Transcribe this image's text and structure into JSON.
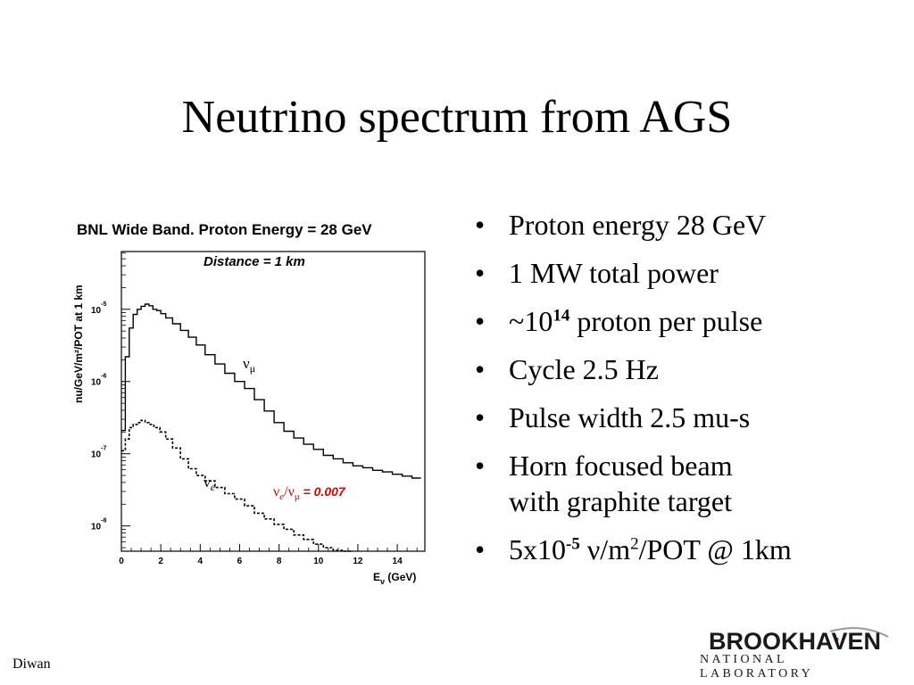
{
  "slide": {
    "title": "Neutrino spectrum from AGS",
    "author": "Diwan"
  },
  "bullets": [
    {
      "text": "Proton energy 28 GeV"
    },
    {
      "text": "1 MW total power"
    },
    {
      "pre": "~10",
      "sup": "14",
      "post": " proton per pulse"
    },
    {
      "text": "Cycle 2.5 Hz"
    },
    {
      "text": "Pulse width 2.5 mu-s"
    },
    {
      "text": "Horn focused beam",
      "text2": "with graphite target"
    },
    {
      "pre": "5x10",
      "sup": "-5",
      "post": " ν/m",
      "sup2": "2",
      "post2": "/POT @ 1km"
    }
  ],
  "logo": {
    "main": "BROOKHAVEN",
    "sub": "NATIONAL LABORATORY",
    "color": "#1a1a1a",
    "swoosh_color": "#9a9a9a",
    "dot_color": "#c8102e"
  },
  "chart_data": {
    "type": "line",
    "title": "BNL Wide Band. Proton Energy = 28 GeV",
    "subtitle": "Distance = 1 km",
    "xlabel": "E",
    "xlabel_sub": "ν",
    "xlabel_unit": " (GeV)",
    "ylabel": "nu/GeV/m²/POT at 1 km",
    "xlim": [
      0,
      15.4
    ],
    "ylim_log10": [
      -8.35,
      -4.2
    ],
    "log_y": true,
    "x_ticks": [
      0,
      2,
      4,
      6,
      8,
      10,
      12,
      14
    ],
    "y_ticks": [
      {
        "base": "10",
        "exp": "-5",
        "log": -5
      },
      {
        "base": "10",
        "exp": "-6",
        "log": -6
      },
      {
        "base": "10",
        "exp": "-7",
        "log": -7
      },
      {
        "base": "10",
        "exp": "-8",
        "log": -8
      }
    ],
    "ratio_label": "ν",
    "ratio_sub1": "e",
    "ratio_mid": "/ν",
    "ratio_sub2": "μ",
    "ratio_value": " = 0.007",
    "ratio_color": "#e00000",
    "series": [
      {
        "name": "ν",
        "name_sub": "μ",
        "style": "solid",
        "x": [
          0.1,
          0.3,
          0.5,
          0.7,
          0.9,
          1.1,
          1.3,
          1.5,
          1.7,
          1.9,
          2.1,
          2.4,
          2.8,
          3.2,
          3.6,
          4.0,
          4.5,
          5.0,
          5.5,
          6.0,
          6.5,
          7.0,
          7.5,
          8.0,
          8.5,
          9.0,
          9.5,
          10.0,
          10.5,
          11.0,
          11.5,
          12.0,
          12.5,
          13.0,
          13.5,
          14.0,
          14.5,
          15.0
        ],
        "y": [
          2.1e-07,
          2.2e-06,
          5.5e-06,
          8.5e-06,
          1e-05,
          1.1e-05,
          1.18e-05,
          1.12e-05,
          1e-05,
          9.6e-06,
          8.7e-06,
          7.6e-06,
          6.3e-06,
          5.1e-06,
          4.1e-06,
          3.2e-06,
          2.35e-06,
          1.75e-06,
          1.3e-06,
          1e-06,
          8e-07,
          5.6e-07,
          3.9e-07,
          2.7e-07,
          2.05e-07,
          1.65e-07,
          1.35e-07,
          1.15e-07,
          9.5e-08,
          8.5e-08,
          7.5e-08,
          6.8e-08,
          6.4e-08,
          5.9e-08,
          5.6e-08,
          5.2e-08,
          4.9e-08,
          4.6e-08
        ]
      },
      {
        "name": "ν",
        "name_sub": "e",
        "style": "dashed",
        "x": [
          0.1,
          0.3,
          0.5,
          0.7,
          0.9,
          1.1,
          1.3,
          1.5,
          1.8,
          2.1,
          2.4,
          2.8,
          3.2,
          3.6,
          4.0,
          4.5,
          5.0,
          5.5,
          6.0,
          6.5,
          7.0,
          7.5,
          8.0,
          8.5,
          9.0,
          9.5,
          10.0,
          10.5,
          11.0,
          11.5
        ],
        "y": [
          1.1e-07,
          1.6e-07,
          2.3e-07,
          2.55e-07,
          2.7e-07,
          2.9e-07,
          2.7e-07,
          2.55e-07,
          2.3e-07,
          2e-07,
          1.6e-07,
          1.2e-07,
          8.5e-08,
          6.2e-08,
          5e-08,
          4.2e-08,
          3.4e-08,
          2.8e-08,
          2.35e-08,
          1.9e-08,
          1.5e-08,
          1.25e-08,
          1.05e-08,
          9e-09,
          7.5e-09,
          6.5e-09,
          5.6e-09,
          5e-09,
          4.6e-09,
          4.3e-09
        ]
      }
    ]
  }
}
